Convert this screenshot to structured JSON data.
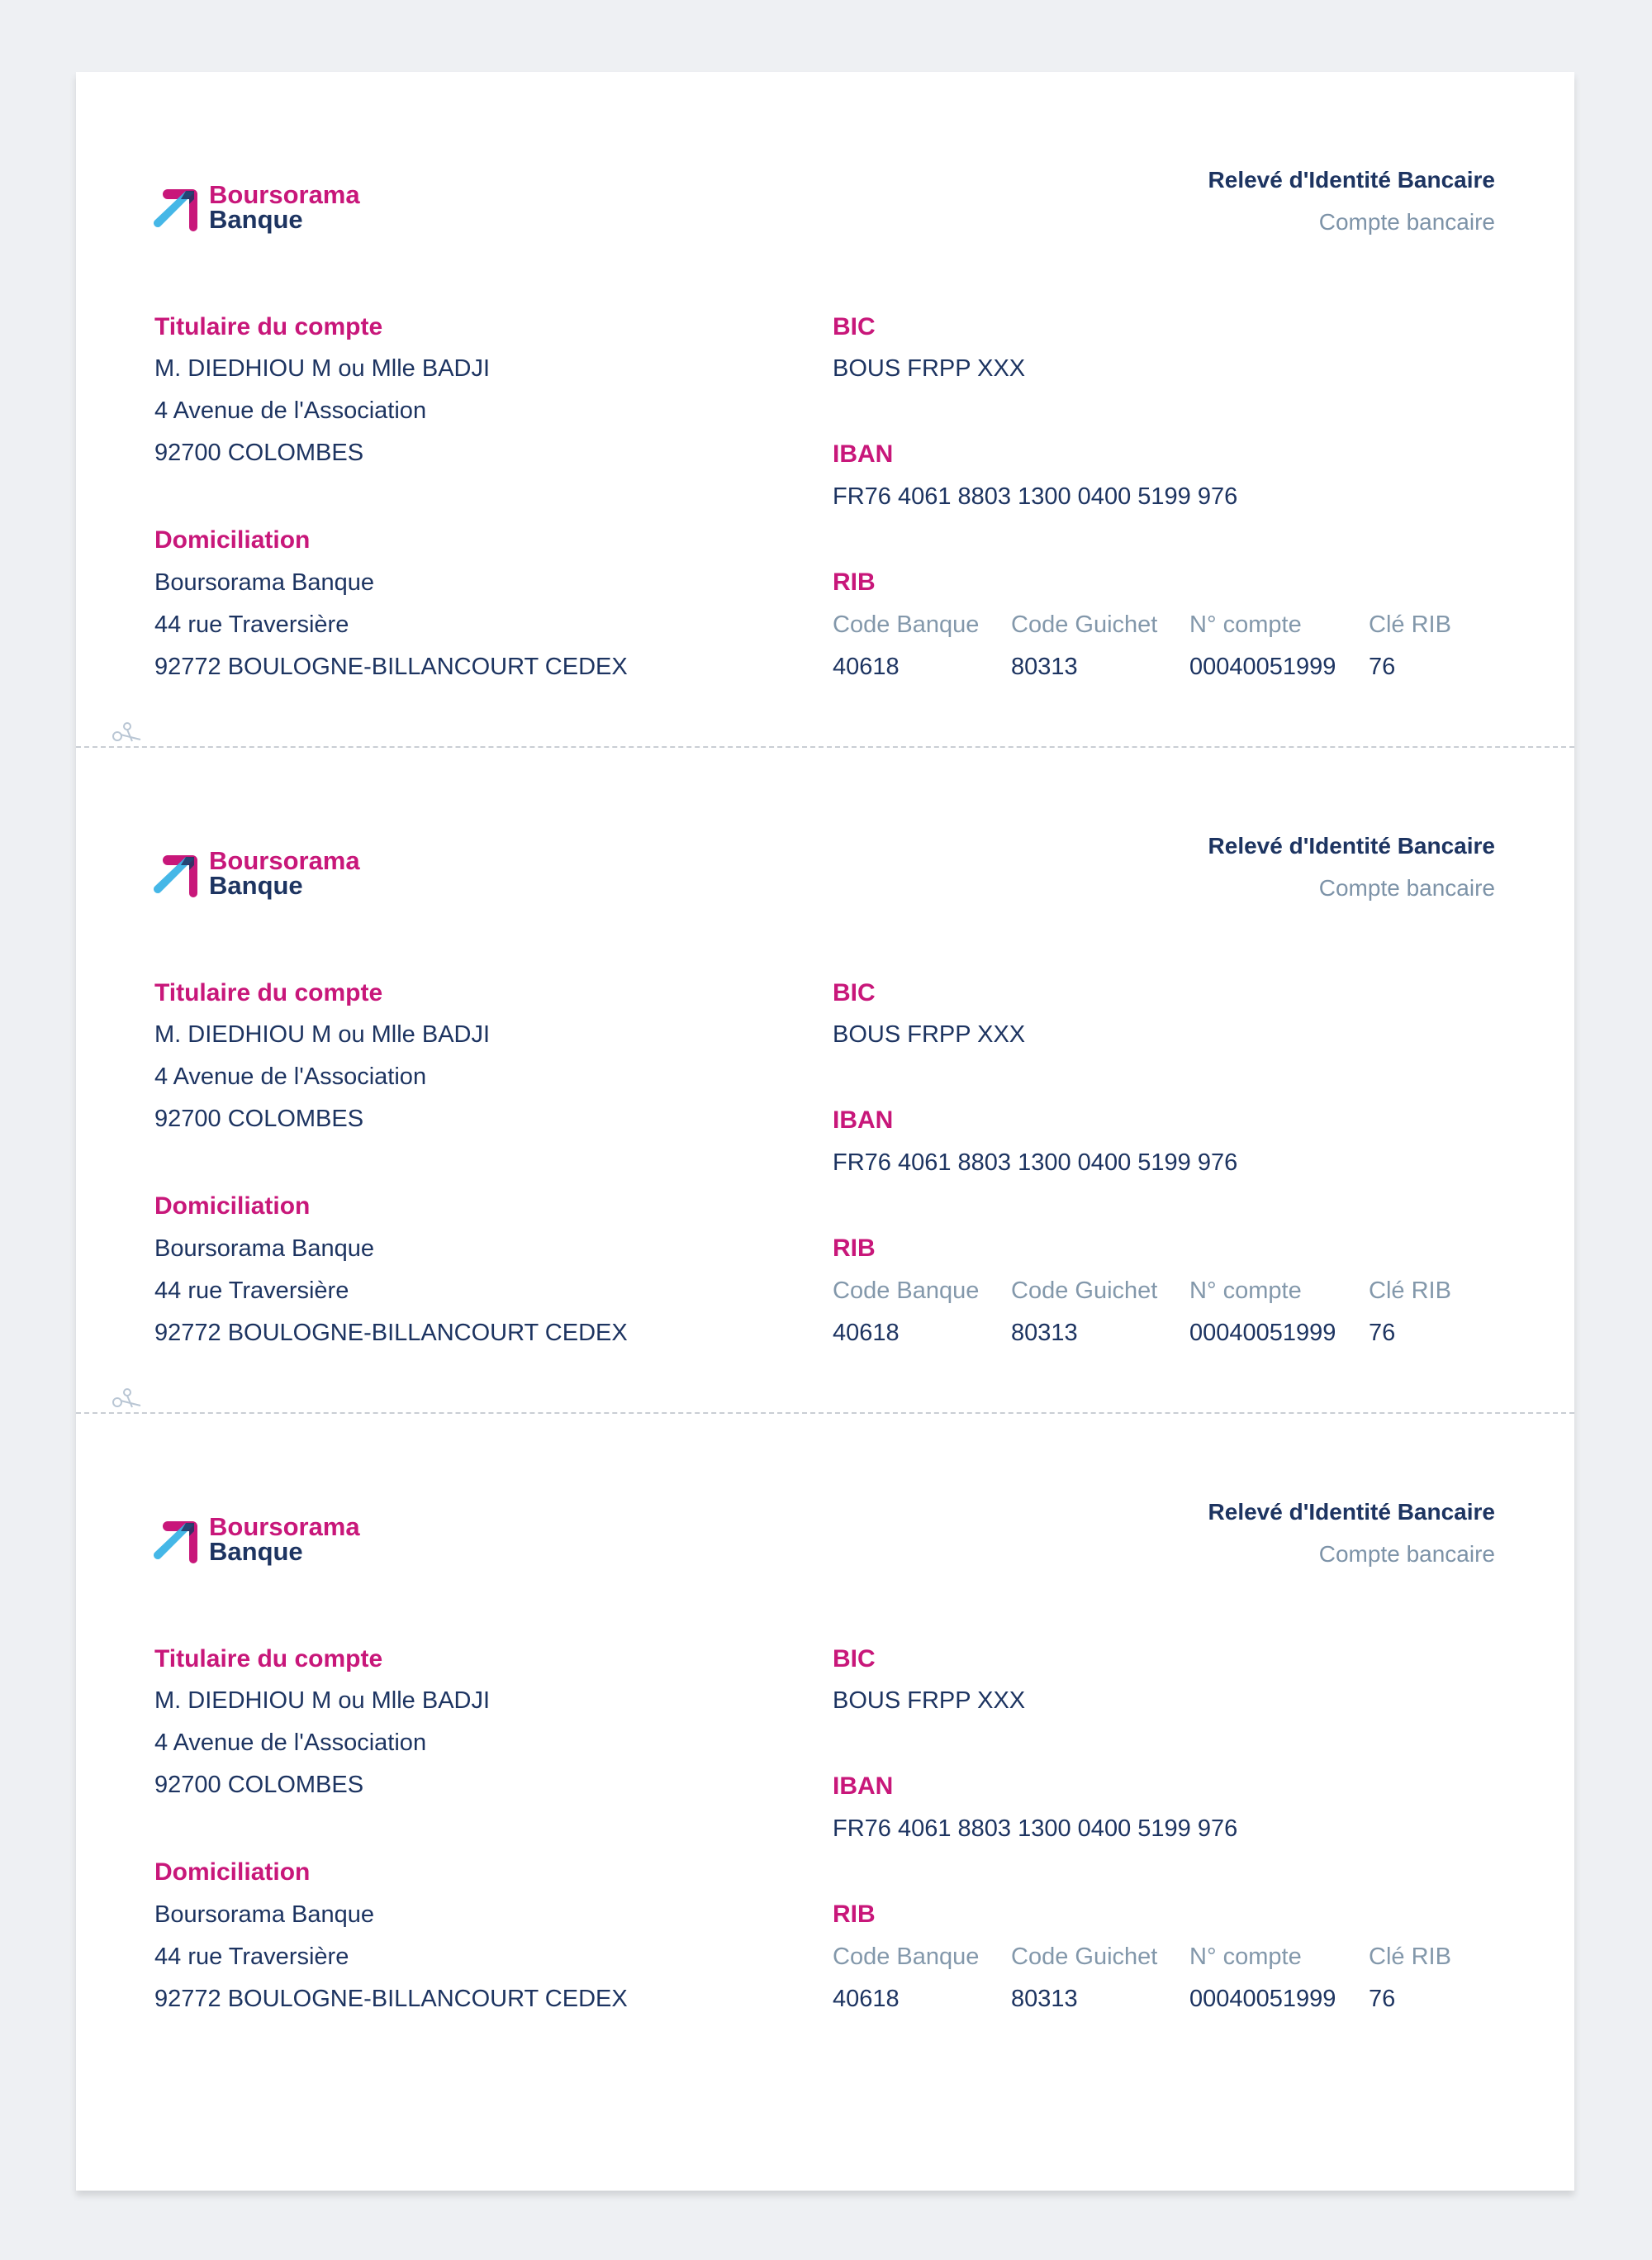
{
  "logo": {
    "line1": "Boursorama",
    "line2": "Banque"
  },
  "header": {
    "title": "Relevé d'Identité Bancaire",
    "subtitle": "Compte bancaire"
  },
  "holder": {
    "label": "Titulaire du compte",
    "lines": [
      "M. DIEDHIOU M ou Mlle BADJI",
      "4 Avenue de l'Association",
      "92700 COLOMBES"
    ]
  },
  "domiciliation": {
    "label": "Domiciliation",
    "lines": [
      "Boursorama Banque",
      "44 rue Traversière",
      "92772 BOULOGNE-BILLANCOURT CEDEX"
    ]
  },
  "bic": {
    "label": "BIC",
    "value": "BOUS FRPP XXX"
  },
  "iban": {
    "label": "IBAN",
    "value": "FR76 4061 8803 1300 0400 5199 976"
  },
  "rib": {
    "label": "RIB",
    "headers": [
      "Code Banque",
      "Code Guichet",
      "N° compte",
      "Clé RIB"
    ],
    "values": [
      "40618",
      "80313",
      "00040051999",
      "76"
    ]
  },
  "colors": {
    "brand_magenta": "#c8177a",
    "brand_navy": "#1d3461",
    "muted": "#8398ab",
    "logo_cyan": "#3bb3e6"
  }
}
